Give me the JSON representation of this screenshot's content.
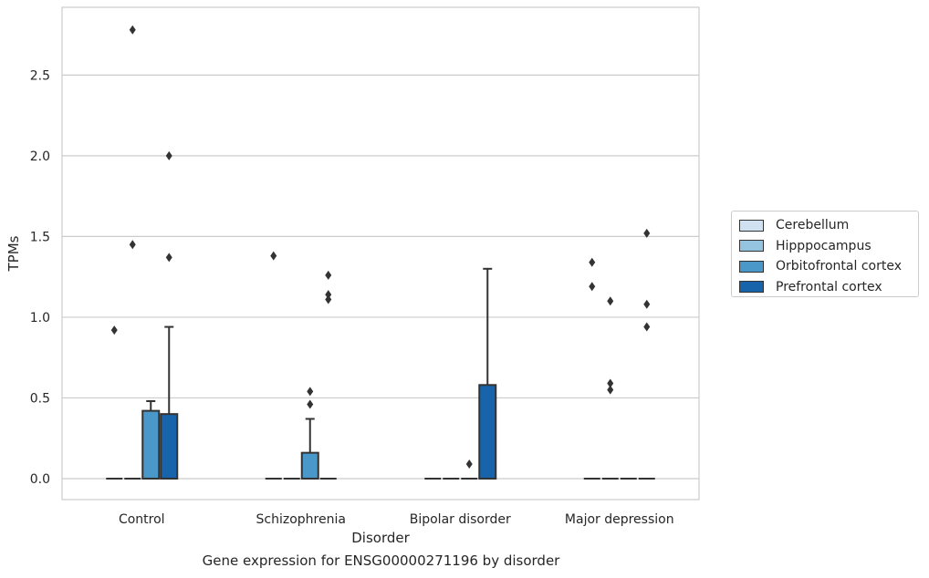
{
  "chart_data": {
    "type": "box",
    "title": "Gene expression for ENSG00000271196 by disorder",
    "xlabel": "Disorder",
    "ylabel": "TPMs",
    "categories": [
      "Control",
      "Schizophrenia",
      "Bipolar disorder",
      "Major depression"
    ],
    "ylim": [
      -0.13,
      2.92
    ],
    "yticks": [
      0.0,
      0.5,
      1.0,
      1.5,
      2.0,
      2.5
    ],
    "ytick_labels": [
      "0.0",
      "0.5",
      "1.0",
      "1.5",
      "2.0",
      "2.5"
    ],
    "grid": "y",
    "legend_position": "right",
    "series": [
      {
        "name": "Cerebellum",
        "color": "#d0e1f2",
        "boxes": [
          {
            "q1": 0,
            "median": 0,
            "q3": 0,
            "whisker_low": 0,
            "whisker_high": 0,
            "outliers": [
              0.92
            ]
          },
          {
            "q1": 0,
            "median": 0,
            "q3": 0,
            "whisker_low": 0,
            "whisker_high": 0,
            "outliers": [
              1.38
            ]
          },
          {
            "q1": 0,
            "median": 0,
            "q3": 0,
            "whisker_low": 0,
            "whisker_high": 0,
            "outliers": []
          },
          {
            "q1": 0,
            "median": 0,
            "q3": 0,
            "whisker_low": 0,
            "whisker_high": 0,
            "outliers": [
              1.34,
              1.19
            ]
          }
        ]
      },
      {
        "name": "Hipppocampus",
        "color": "#94c4df",
        "boxes": [
          {
            "q1": 0,
            "median": 0,
            "q3": 0,
            "whisker_low": 0,
            "whisker_high": 0,
            "outliers": [
              2.78,
              1.45
            ]
          },
          {
            "q1": 0,
            "median": 0,
            "q3": 0,
            "whisker_low": 0,
            "whisker_high": 0,
            "outliers": []
          },
          {
            "q1": 0,
            "median": 0,
            "q3": 0,
            "whisker_low": 0,
            "whisker_high": 0,
            "outliers": []
          },
          {
            "q1": 0,
            "median": 0,
            "q3": 0,
            "whisker_low": 0,
            "whisker_high": 0,
            "outliers": [
              1.1,
              0.59,
              0.55
            ]
          }
        ]
      },
      {
        "name": "Orbitofrontal cortex",
        "color": "#4a98c9",
        "boxes": [
          {
            "q1": 0,
            "median": 0,
            "q3": 0.42,
            "whisker_low": 0,
            "whisker_high": 0.48,
            "outliers": []
          },
          {
            "q1": 0,
            "median": 0,
            "q3": 0.16,
            "whisker_low": 0,
            "whisker_high": 0.37,
            "outliers": [
              0.54,
              0.46
            ]
          },
          {
            "q1": 0,
            "median": 0,
            "q3": 0,
            "whisker_low": 0,
            "whisker_high": 0,
            "outliers": [
              0.09
            ]
          },
          {
            "q1": 0,
            "median": 0,
            "q3": 0,
            "whisker_low": 0,
            "whisker_high": 0,
            "outliers": []
          }
        ]
      },
      {
        "name": "Prefrontal cortex",
        "color": "#1764ab",
        "boxes": [
          {
            "q1": 0,
            "median": 0,
            "q3": 0.4,
            "whisker_low": 0,
            "whisker_high": 0.94,
            "outliers": [
              2.0,
              1.37
            ]
          },
          {
            "q1": 0,
            "median": 0,
            "q3": 0,
            "whisker_low": 0,
            "whisker_high": 0,
            "outliers": [
              1.26,
              1.14,
              1.11
            ]
          },
          {
            "q1": 0,
            "median": 0,
            "q3": 0.58,
            "whisker_low": 0,
            "whisker_high": 1.3,
            "outliers": []
          },
          {
            "q1": 0,
            "median": 0,
            "q3": 0,
            "whisker_low": 0,
            "whisker_high": 0,
            "outliers": [
              1.52,
              1.08,
              0.94
            ]
          }
        ]
      }
    ]
  }
}
